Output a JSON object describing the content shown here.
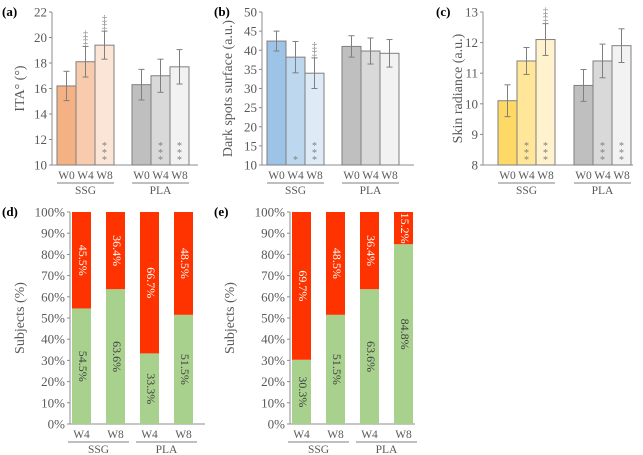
{
  "chart_data": [
    {
      "panel": "(a)",
      "type": "bar",
      "ylabel": "ITA° (°)",
      "ylim": [
        10,
        22
      ],
      "yticks": [
        10,
        12,
        14,
        16,
        18,
        20,
        22
      ],
      "groups": [
        {
          "name": "SSG",
          "categories": [
            "W0",
            "W4",
            "W8"
          ],
          "values": [
            16.2,
            18.1,
            19.4
          ],
          "errors": [
            1.15,
            1.2,
            1.1
          ],
          "colors": [
            "#f4b183",
            "#f8cbad",
            "#fbe5d6"
          ],
          "sig_top": [
            "",
            "‡‡",
            "‡‡"
          ],
          "sig_bottom": [
            "",
            "",
            "***"
          ]
        },
        {
          "name": "PLA",
          "categories": [
            "W0",
            "W4",
            "W8"
          ],
          "values": [
            16.3,
            17.0,
            17.7
          ],
          "errors": [
            1.2,
            1.3,
            1.35
          ],
          "colors": [
            "#bfbfbf",
            "#d9d9d9",
            "#f2f2f2"
          ],
          "sig_top": [
            "",
            "",
            ""
          ],
          "sig_bottom": [
            "",
            "***",
            "***"
          ]
        }
      ]
    },
    {
      "panel": "(b)",
      "type": "bar",
      "ylabel": "Dark spots surface (a.u.)",
      "ylim": [
        10,
        50
      ],
      "yticks": [
        10,
        15,
        20,
        25,
        30,
        35,
        40,
        45,
        50
      ],
      "groups": [
        {
          "name": "SSG",
          "categories": [
            "W0",
            "W4",
            "W8"
          ],
          "values": [
            42.4,
            38.2,
            34.0
          ],
          "errors": [
            2.6,
            4.1,
            4.0
          ],
          "colors": [
            "#9dc3e6",
            "#bdd7ee",
            "#deebf7"
          ],
          "sig_top": [
            "",
            "",
            "‡‡"
          ],
          "sig_bottom": [
            "",
            "*",
            "***"
          ]
        },
        {
          "name": "PLA",
          "categories": [
            "W0",
            "W4",
            "W8"
          ],
          "values": [
            41.0,
            39.8,
            39.2
          ],
          "errors": [
            2.8,
            3.4,
            3.6
          ],
          "colors": [
            "#bfbfbf",
            "#d9d9d9",
            "#f2f2f2"
          ],
          "sig_top": [
            "",
            "",
            ""
          ],
          "sig_bottom": [
            "",
            "",
            ""
          ]
        }
      ]
    },
    {
      "panel": "(c)",
      "type": "bar",
      "ylabel": "Skin radiance (a.u.)",
      "ylim": [
        8,
        13
      ],
      "yticks": [
        8,
        9,
        10,
        11,
        12,
        13
      ],
      "groups": [
        {
          "name": "SSG",
          "categories": [
            "W0",
            "W4",
            "W8"
          ],
          "values": [
            10.1,
            11.4,
            12.1
          ],
          "errors": [
            0.52,
            0.44,
            0.52
          ],
          "colors": [
            "#ffd966",
            "#ffe699",
            "#fff2cc"
          ],
          "sig_top": [
            "",
            "",
            "‡‡"
          ],
          "sig_bottom": [
            "",
            "***",
            "***"
          ]
        },
        {
          "name": "PLA",
          "categories": [
            "W0",
            "W4",
            "W8"
          ],
          "values": [
            10.6,
            11.4,
            11.9
          ],
          "errors": [
            0.52,
            0.55,
            0.55
          ],
          "colors": [
            "#bfbfbf",
            "#d9d9d9",
            "#f2f2f2"
          ],
          "sig_top": [
            "",
            "",
            ""
          ],
          "sig_bottom": [
            "",
            "***",
            "***"
          ]
        }
      ]
    },
    {
      "panel": "(d)",
      "type": "bar",
      "stacked": true,
      "ylabel": "Subjects (%)",
      "ylim": [
        0,
        100
      ],
      "yticks": [
        "0%",
        "10%",
        "20%",
        "30%",
        "40%",
        "50%",
        "60%",
        "70%",
        "80%",
        "90%",
        "100%"
      ],
      "groups": [
        {
          "name": "SSG",
          "categories": [
            "W4",
            "W8"
          ]
        },
        {
          "name": "PLA",
          "categories": [
            "W4",
            "W8"
          ]
        }
      ],
      "series": [
        {
          "name": "green",
          "color": "#a9d18e",
          "values": [
            54.5,
            63.6,
            33.3,
            51.5
          ],
          "labels": [
            "54.5%",
            "63.6%",
            "33.3%",
            "51.5%"
          ]
        },
        {
          "name": "red",
          "color": "#ff3300",
          "values": [
            45.5,
            36.4,
            66.7,
            48.5
          ],
          "labels": [
            "45.5%",
            "36.4%",
            "66.7%",
            "48.5%"
          ]
        }
      ]
    },
    {
      "panel": "(e)",
      "type": "bar",
      "stacked": true,
      "ylabel": "Subjects (%)",
      "ylim": [
        0,
        100
      ],
      "yticks": [
        "0%",
        "10%",
        "20%",
        "30%",
        "40%",
        "50%",
        "60%",
        "70%",
        "80%",
        "90%",
        "100%"
      ],
      "groups": [
        {
          "name": "SSG",
          "categories": [
            "W4",
            "W8"
          ]
        },
        {
          "name": "PLA",
          "categories": [
            "W4",
            "W8"
          ]
        }
      ],
      "series": [
        {
          "name": "green",
          "color": "#a9d18e",
          "values": [
            30.3,
            51.5,
            63.6,
            84.8
          ],
          "labels": [
            "30.3%",
            "51.5%",
            "63.6%",
            "84.8%"
          ]
        },
        {
          "name": "red",
          "color": "#ff3300",
          "values": [
            69.7,
            48.5,
            36.4,
            15.2
          ],
          "labels": [
            "69.7%",
            "48.5%",
            "36.4%",
            "15.2%"
          ]
        }
      ]
    }
  ]
}
